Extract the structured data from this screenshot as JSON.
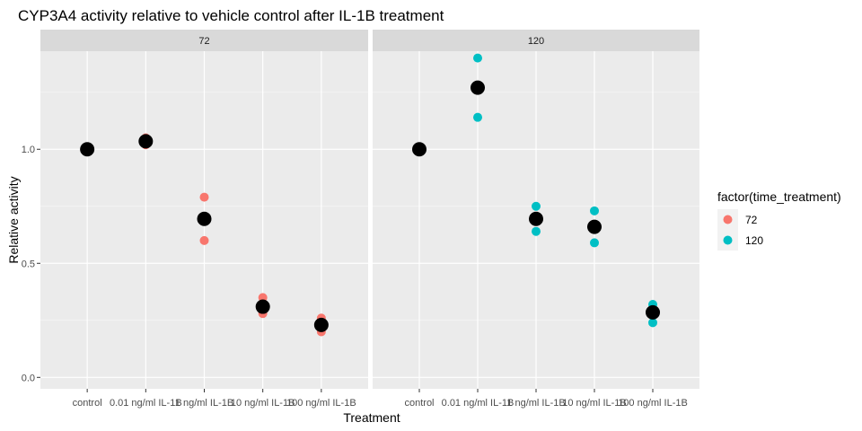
{
  "chart_data": {
    "type": "scatter",
    "title": "CYP3A4 activity relative to vehicle control after IL-1B treatment",
    "xlabel": "Treatment",
    "ylabel": "Relative activity",
    "categories": [
      "control",
      "0.01 ng/ml IL-1B",
      "1 ng/ml IL-1B",
      "10 ng/ml IL-1B",
      "100 ng/ml IL-1B"
    ],
    "ylim": [
      -0.05,
      1.43
    ],
    "yticks": [
      0.0,
      0.5,
      1.0
    ],
    "ytick_labels": [
      "0.0",
      "0.5",
      "1.0"
    ],
    "grid": true,
    "legend": {
      "title": "factor(time_treatment)",
      "position": "right",
      "entries": [
        {
          "label": "72",
          "color": "#F8766D"
        },
        {
          "label": "120",
          "color": "#00BFC4"
        }
      ]
    },
    "mean_color": "#000000",
    "facets": [
      {
        "strip": "72",
        "color": "#F8766D",
        "points": [
          {
            "category": "control",
            "values": [
              1.0,
              1.0,
              1.0
            ]
          },
          {
            "category": "0.01 ng/ml IL-1B",
            "values": [
              1.05,
              1.02,
              1.04
            ]
          },
          {
            "category": "1 ng/ml IL-1B",
            "values": [
              0.79,
              0.6,
              0.69
            ]
          },
          {
            "category": "10 ng/ml IL-1B",
            "values": [
              0.35,
              0.28,
              0.31
            ]
          },
          {
            "category": "100 ng/ml IL-1B",
            "values": [
              0.26,
              0.2,
              0.23
            ]
          }
        ],
        "means": [
          1.0,
          1.035,
          0.695,
          0.31,
          0.23
        ]
      },
      {
        "strip": "120",
        "color": "#00BFC4",
        "points": [
          {
            "category": "control",
            "values": [
              1.0,
              1.0,
              1.0
            ]
          },
          {
            "category": "0.01 ng/ml IL-1B",
            "values": [
              1.4,
              1.14,
              1.27
            ]
          },
          {
            "category": "1 ng/ml IL-1B",
            "values": [
              0.75,
              0.64,
              0.7
            ]
          },
          {
            "category": "10 ng/ml IL-1B",
            "values": [
              0.73,
              0.59,
              0.66
            ]
          },
          {
            "category": "100 ng/ml IL-1B",
            "values": [
              0.32,
              0.24,
              0.29
            ]
          }
        ],
        "means": [
          1.0,
          1.27,
          0.695,
          0.66,
          0.285
        ]
      }
    ]
  }
}
